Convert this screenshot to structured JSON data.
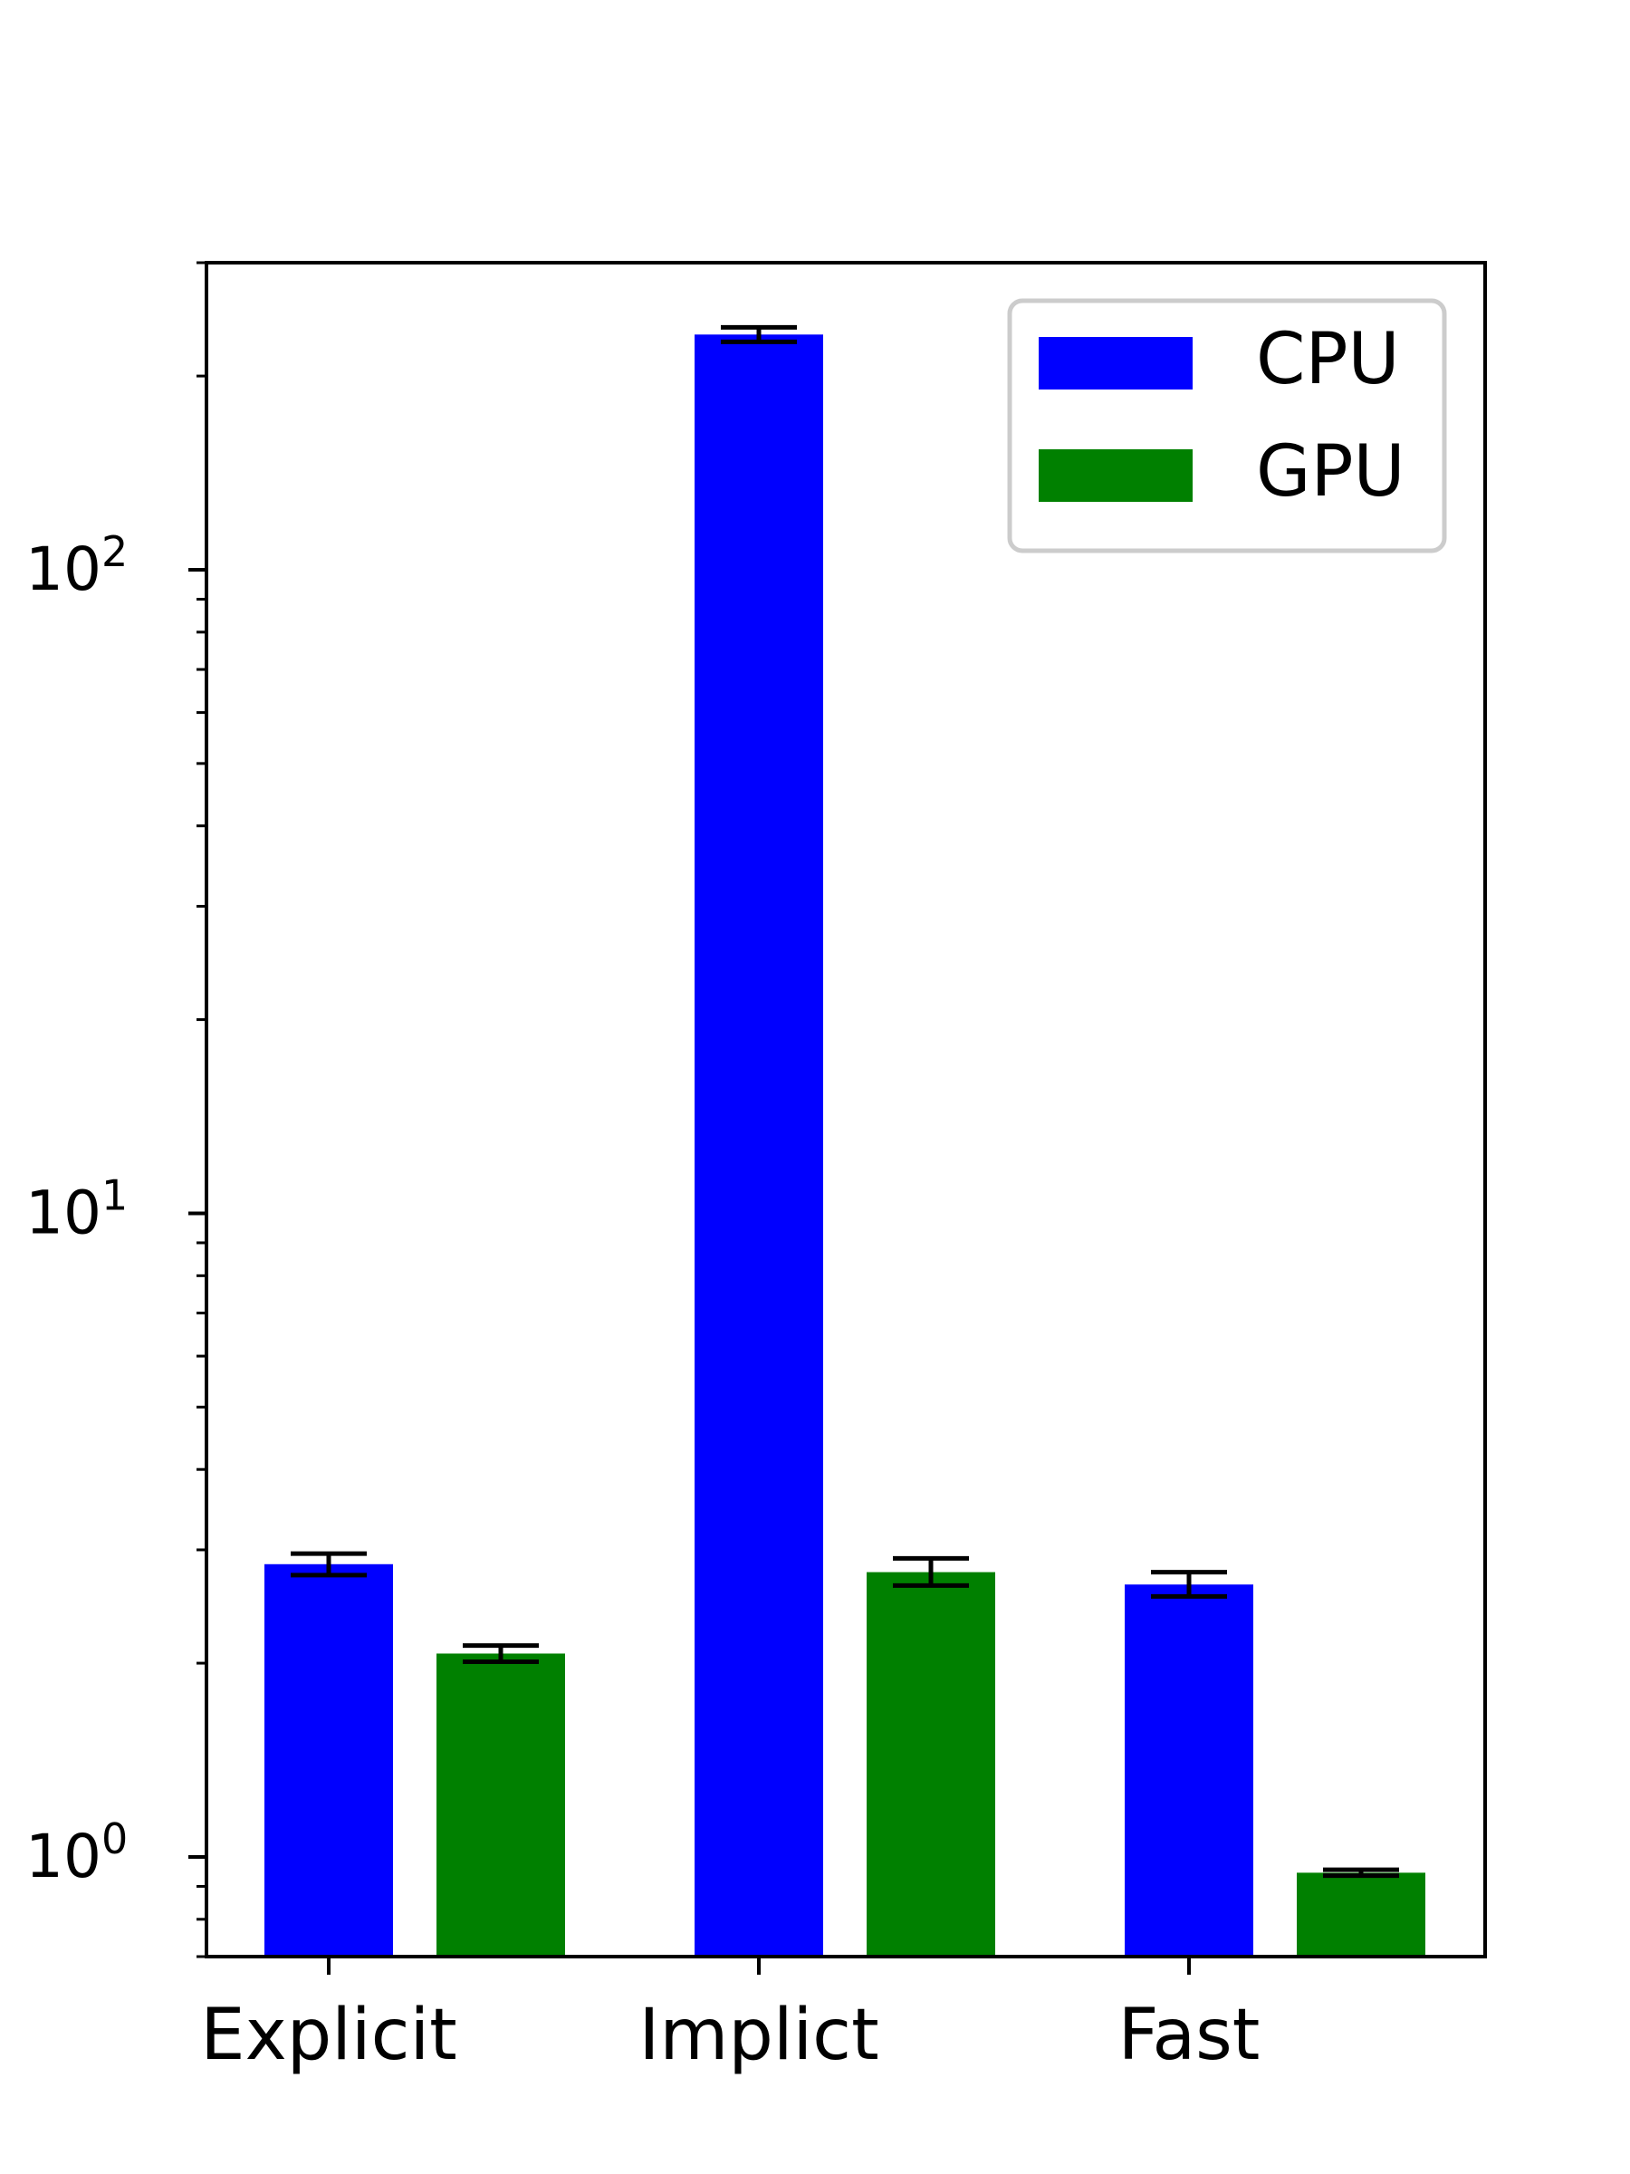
{
  "chart_data": {
    "type": "bar",
    "categories": [
      "Explicit",
      "Implict",
      "Fast"
    ],
    "series": [
      {
        "name": "CPU",
        "color": "#0000ff",
        "values": [
          2.85,
          232,
          2.65
        ],
        "err_low": [
          2.74,
          226,
          2.54
        ],
        "err_high": [
          2.96,
          238,
          2.77
        ]
      },
      {
        "name": "GPU",
        "color": "#008000",
        "values": [
          2.07,
          2.77,
          0.945
        ],
        "err_low": [
          2.01,
          2.64,
          0.935
        ],
        "err_high": [
          2.13,
          2.91,
          0.955
        ]
      }
    ],
    "yscale": "log",
    "ylim": [
      0.7,
      300
    ],
    "ytick_labels": [
      {
        "value": 1,
        "base": "10",
        "exp": "0"
      },
      {
        "value": 10,
        "base": "10",
        "exp": "1"
      },
      {
        "value": 100,
        "base": "10",
        "exp": "2"
      }
    ],
    "title": "",
    "xlabel": "",
    "ylabel": "",
    "legend_position": "top-right",
    "grid": false
  }
}
